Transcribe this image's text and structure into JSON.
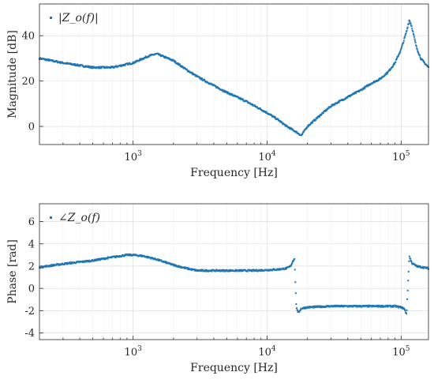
{
  "chart_data": [
    {
      "type": "scatter",
      "title": "",
      "xlabel": "Frequency [Hz]",
      "ylabel": "Magnitude [dB]",
      "xscale": "log",
      "xlim": [
        200,
        160000
      ],
      "ylim": [
        -8,
        54
      ],
      "yticks": [
        "0",
        "20",
        "40"
      ],
      "ytick_values": [
        0,
        20,
        40
      ],
      "xticks": [
        "10",
        "10",
        "10"
      ],
      "xtick_exponents": [
        "3",
        "4",
        "5"
      ],
      "xtick_values": [
        1000,
        10000,
        100000
      ],
      "grid": true,
      "legend_position": "top-left",
      "color": "#1f77b4",
      "series": [
        {
          "name": "|Z_o(f)|",
          "x": [
            200,
            300,
            500,
            700,
            1000,
            1300,
            1500,
            2000,
            2500,
            3000,
            4000,
            5000,
            7000,
            10000,
            12000,
            14000,
            15000,
            16000,
            17000,
            18000,
            20000,
            25000,
            30000,
            40000,
            50000,
            60000,
            70000,
            80000,
            90000,
            100000,
            110000,
            115000,
            120000,
            130000,
            140000,
            160000
          ],
          "y": [
            30,
            28,
            26,
            26,
            28,
            31,
            32,
            29,
            25,
            22,
            18,
            15,
            11,
            6,
            3,
            0,
            -1,
            -2,
            -3,
            -4,
            0,
            5,
            9,
            13,
            16,
            19,
            21,
            24,
            28,
            34,
            42,
            47,
            44,
            35,
            30,
            26
          ]
        }
      ]
    },
    {
      "type": "scatter",
      "title": "",
      "xlabel": "Frequency [Hz]",
      "ylabel": "Phase [rad]",
      "xscale": "log",
      "xlim": [
        200,
        160000
      ],
      "ylim": [
        -4.6,
        7.6
      ],
      "yticks": [
        "-4",
        "-2",
        "0",
        "2",
        "4",
        "6"
      ],
      "ytick_values": [
        -4,
        -2,
        0,
        2,
        4,
        6
      ],
      "xticks": [
        "10",
        "10",
        "10"
      ],
      "xtick_exponents": [
        "3",
        "4",
        "5"
      ],
      "xtick_values": [
        1000,
        10000,
        100000
      ],
      "grid": true,
      "legend_position": "top-left",
      "color": "#1f77b4",
      "series": [
        {
          "name": "∠Z_o(f)",
          "x": [
            200,
            300,
            500,
            700,
            900,
            1000,
            1200,
            1500,
            2000,
            2500,
            3000,
            4000,
            6000,
            8000,
            10000,
            12000,
            14000,
            15000,
            15500,
            16000,
            16500,
            17000,
            18000,
            20000,
            30000,
            50000,
            70000,
            90000,
            100000,
            105000,
            110000,
            115000,
            120000,
            130000,
            160000
          ],
          "y": [
            1.9,
            2.2,
            2.5,
            2.8,
            3.0,
            3.0,
            2.9,
            2.6,
            2.1,
            1.8,
            1.6,
            1.6,
            1.6,
            1.6,
            1.65,
            1.7,
            1.8,
            2.0,
            2.4,
            2.7,
            -1.6,
            -2.2,
            -1.8,
            -1.7,
            -1.6,
            -1.6,
            -1.6,
            -1.6,
            -1.7,
            -1.8,
            -2.3,
            2.9,
            2.3,
            2.0,
            1.8
          ]
        }
      ]
    }
  ]
}
